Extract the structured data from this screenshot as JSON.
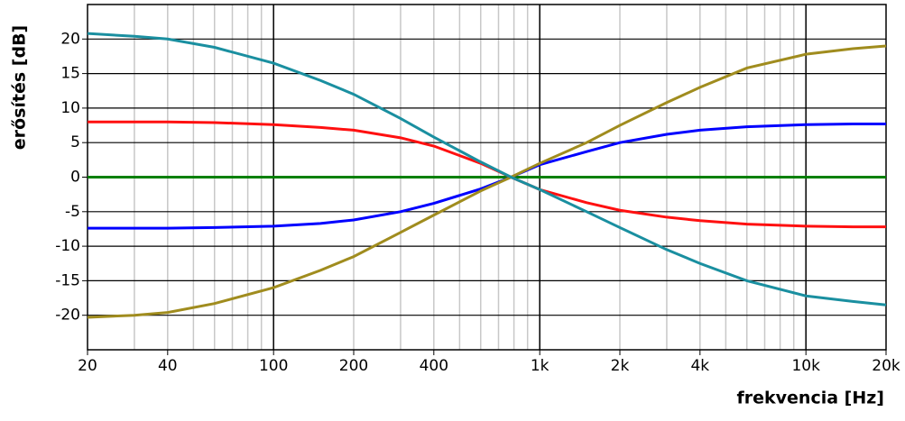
{
  "chart_data": {
    "type": "line",
    "ylabel": "erősítés [dB]",
    "xlabel": "frekvencia [Hz]",
    "xscale": "log",
    "xlim": [
      20,
      20000
    ],
    "ylim": [
      -25,
      25
    ],
    "xticks": [
      20,
      40,
      100,
      200,
      400,
      {
        "value": 1000,
        "label": "1k"
      },
      {
        "value": 2000,
        "label": "2k"
      },
      {
        "value": 4000,
        "label": "4k"
      },
      {
        "value": 10000,
        "label": "10k"
      },
      {
        "value": 20000,
        "label": "20k"
      }
    ],
    "yticks": [
      -20,
      -15,
      -10,
      -5,
      0,
      5,
      10,
      15,
      20
    ],
    "xgrid_major": [
      100,
      1000,
      10000
    ],
    "xgrid_minor": [
      30,
      40,
      50,
      60,
      70,
      80,
      90,
      200,
      300,
      400,
      500,
      600,
      700,
      800,
      900,
      2000,
      3000,
      4000,
      5000,
      6000,
      7000,
      8000,
      9000
    ],
    "grid": true,
    "x": [
      20,
      30,
      40,
      60,
      100,
      150,
      200,
      300,
      400,
      600,
      780,
      1000,
      1500,
      2000,
      3000,
      4000,
      6000,
      10000,
      15000,
      20000
    ],
    "series": [
      {
        "color": "#008000",
        "values": [
          0,
          0,
          0,
          0,
          0,
          0,
          0,
          0,
          0,
          0,
          0,
          0,
          0,
          0,
          0,
          0,
          0,
          0,
          0,
          0
        ]
      },
      {
        "color": "#ff1010",
        "values": [
          8,
          8,
          8,
          7.9,
          7.6,
          7.2,
          6.8,
          5.7,
          4.5,
          2,
          0,
          -1.8,
          -3.7,
          -4.8,
          -5.8,
          -6.3,
          -6.8,
          -7.1,
          -7.2,
          -7.2
        ]
      },
      {
        "color": "#0000ff",
        "values": [
          -7.4,
          -7.4,
          -7.4,
          -7.3,
          -7.1,
          -6.7,
          -6.2,
          -5,
          -3.8,
          -1.7,
          0,
          1.8,
          3.7,
          5,
          6.2,
          6.8,
          7.3,
          7.6,
          7.7,
          7.7
        ]
      },
      {
        "color": "#a08c1e",
        "values": [
          -20.3,
          -20,
          -19.6,
          -18.3,
          -16,
          -13.5,
          -11.5,
          -8,
          -5.5,
          -2,
          0,
          2,
          5,
          7.5,
          10.8,
          13,
          15.8,
          17.8,
          18.6,
          19
        ]
      },
      {
        "color": "#1a8fa0",
        "values": [
          20.8,
          20.4,
          20,
          18.8,
          16.5,
          14,
          12,
          8.5,
          5.8,
          2.2,
          0,
          -1.8,
          -5,
          -7.3,
          -10.5,
          -12.5,
          -15,
          -17.2,
          -18,
          -18.5
        ]
      }
    ]
  }
}
